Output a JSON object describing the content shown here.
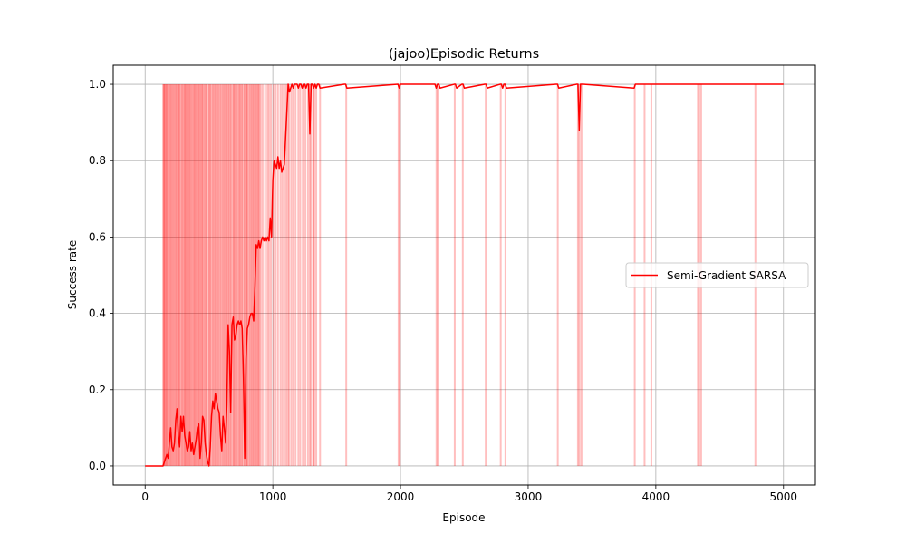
{
  "chart_data": {
    "type": "line",
    "title": "(jajoo)Episodic Returns",
    "xlabel": "Episode",
    "ylabel": "Success rate",
    "xlim": [
      -250,
      5250
    ],
    "ylim": [
      -0.05,
      1.05
    ],
    "xticks": [
      0,
      1000,
      2000,
      3000,
      4000,
      5000
    ],
    "yticks": [
      0.0,
      0.2,
      0.4,
      0.6,
      0.8,
      1.0
    ],
    "xtick_labels": [
      "0",
      "1000",
      "2000",
      "3000",
      "4000",
      "5000"
    ],
    "ytick_labels": [
      "0.0",
      "0.2",
      "0.4",
      "0.6",
      "0.8",
      "1.0"
    ],
    "grid": true,
    "legend_placement": "center-right",
    "series": [
      {
        "name": "Semi-Gradient SARSA",
        "color": "#ff0000",
        "fill_color": "#ff0000",
        "x": [
          0,
          140,
          150,
          160,
          170,
          180,
          190,
          200,
          210,
          220,
          230,
          240,
          250,
          260,
          270,
          280,
          290,
          300,
          310,
          320,
          330,
          340,
          350,
          360,
          370,
          380,
          390,
          400,
          410,
          420,
          430,
          440,
          450,
          460,
          470,
          480,
          490,
          500,
          510,
          520,
          530,
          540,
          550,
          560,
          570,
          580,
          590,
          600,
          610,
          620,
          630,
          640,
          650,
          660,
          670,
          680,
          690,
          700,
          710,
          720,
          730,
          740,
          750,
          760,
          770,
          780,
          790,
          800,
          810,
          820,
          830,
          840,
          850,
          860,
          870,
          880,
          890,
          900,
          910,
          920,
          930,
          940,
          950,
          960,
          970,
          980,
          990,
          1000,
          1010,
          1020,
          1030,
          1040,
          1050,
          1060,
          1070,
          1080,
          1090,
          1100,
          1110,
          1120,
          1130,
          1140,
          1150,
          1160,
          1170,
          1180,
          1190,
          1200,
          1210,
          1220,
          1230,
          1240,
          1250,
          1260,
          1270,
          1280,
          1290,
          1300,
          1310,
          1320,
          1330,
          1340,
          1350,
          1360,
          1370,
          1560,
          1570,
          1580,
          1980,
          1990,
          2000,
          2270,
          2280,
          2290,
          2300,
          2310,
          2420,
          2430,
          2440,
          2480,
          2490,
          2500,
          2660,
          2670,
          2680,
          2780,
          2790,
          2800,
          2810,
          2820,
          2830,
          3220,
          3230,
          3240,
          3380,
          3390,
          3400,
          3410,
          3420,
          3430,
          3830,
          3840,
          3850,
          3900,
          3910,
          3920,
          3960,
          3970,
          3980,
          4320,
          4330,
          4340,
          4350,
          4360,
          4770,
          4780,
          4790,
          5000
        ],
        "values": [
          0.0,
          0.0,
          0.01,
          0.02,
          0.03,
          0.02,
          0.06,
          0.1,
          0.05,
          0.04,
          0.06,
          0.12,
          0.15,
          0.08,
          0.05,
          0.13,
          0.09,
          0.13,
          0.08,
          0.06,
          0.04,
          0.05,
          0.09,
          0.04,
          0.06,
          0.03,
          0.05,
          0.07,
          0.1,
          0.11,
          0.02,
          0.06,
          0.13,
          0.12,
          0.06,
          0.03,
          0.01,
          0.0,
          0.05,
          0.13,
          0.17,
          0.15,
          0.19,
          0.17,
          0.15,
          0.14,
          0.08,
          0.04,
          0.13,
          0.1,
          0.06,
          0.16,
          0.37,
          0.3,
          0.14,
          0.37,
          0.39,
          0.33,
          0.34,
          0.37,
          0.38,
          0.37,
          0.38,
          0.36,
          0.23,
          0.02,
          0.28,
          0.36,
          0.37,
          0.39,
          0.4,
          0.4,
          0.38,
          0.47,
          0.58,
          0.57,
          0.59,
          0.57,
          0.59,
          0.6,
          0.59,
          0.6,
          0.59,
          0.6,
          0.59,
          0.65,
          0.6,
          0.75,
          0.8,
          0.79,
          0.78,
          0.81,
          0.78,
          0.8,
          0.77,
          0.78,
          0.79,
          0.86,
          0.93,
          1.0,
          0.98,
          0.99,
          1.0,
          0.99,
          1.0,
          1.0,
          1.0,
          0.99,
          1.0,
          1.0,
          0.99,
          1.0,
          1.0,
          0.99,
          1.0,
          1.0,
          0.87,
          1.0,
          1.0,
          0.99,
          1.0,
          0.99,
          1.0,
          1.0,
          0.99,
          1.0,
          1.0,
          0.99,
          1.0,
          0.99,
          1.0,
          1.0,
          0.99,
          1.0,
          1.0,
          0.99,
          1.0,
          1.0,
          0.99,
          1.0,
          1.0,
          0.99,
          1.0,
          1.0,
          0.99,
          1.0,
          1.0,
          0.99,
          1.0,
          1.0,
          0.99,
          1.0,
          1.0,
          0.99,
          1.0,
          1.0,
          0.88,
          1.0,
          1.0,
          1.0,
          0.99,
          1.0,
          1.0,
          1.0,
          1.0,
          1.0,
          1.0,
          1.0,
          1.0,
          1.0,
          1.0,
          1.0,
          1.0,
          1.0,
          1.0,
          1.0,
          1.0,
          1.0
        ],
        "episode_outcome_markers": [
          142,
          148,
          155,
          165,
          172,
          186,
          198,
          210,
          223,
          236,
          248,
          262,
          270,
          286,
          300,
          312,
          320,
          333,
          344,
          355,
          369,
          383,
          392,
          405,
          417,
          428,
          441,
          452,
          468,
          480,
          500,
          512,
          530,
          545,
          560,
          575,
          592,
          610,
          625,
          640,
          655,
          670,
          690,
          700,
          715,
          732,
          745,
          760,
          778,
          792,
          802,
          820,
          836,
          850,
          870,
          884,
          895,
          905,
          920,
          940,
          958,
          970,
          985,
          1005,
          1022,
          1040,
          1060,
          1075,
          1090,
          1105,
          1118,
          1128,
          1145,
          1160,
          1178,
          1200,
          1215,
          1235,
          1255,
          1275,
          1290,
          1300,
          1318,
          1325,
          1340,
          1370,
          1575,
          1985,
          1995,
          2282,
          2293,
          2425,
          2488,
          2668,
          2785,
          2822,
          3232,
          3390,
          3402,
          3418,
          3835,
          3912,
          3965,
          4330,
          4340,
          4355,
          4780
        ]
      }
    ]
  }
}
